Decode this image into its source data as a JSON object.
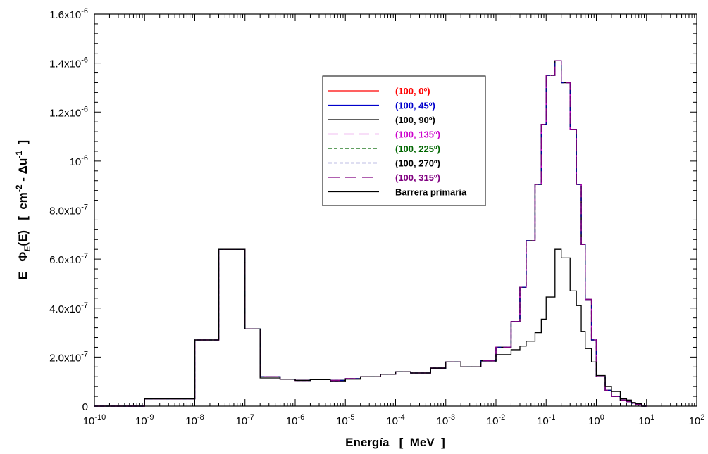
{
  "chart_data": {
    "type": "line",
    "xlabel": "Energía   [  MeV  ]",
    "ylabel": "E   Φ(E)   [  cm⁻² - Δu⁻¹  ]",
    "x_scale": "log",
    "xlim": [
      1e-10,
      100
    ],
    "ylim": [
      0,
      1.6e-06
    ],
    "x_tick_labels": [
      {
        "base": "10",
        "exp": "-10"
      },
      {
        "base": "10",
        "exp": "-9"
      },
      {
        "base": "10",
        "exp": "-8"
      },
      {
        "base": "10",
        "exp": "-7"
      },
      {
        "base": "10",
        "exp": "-6"
      },
      {
        "base": "10",
        "exp": "-5"
      },
      {
        "base": "10",
        "exp": "-4"
      },
      {
        "base": "10",
        "exp": "-3"
      },
      {
        "base": "10",
        "exp": "-2"
      },
      {
        "base": "10",
        "exp": "-1"
      },
      {
        "base": "10",
        "exp": "0"
      },
      {
        "base": "10",
        "exp": "1"
      },
      {
        "base": "10",
        "exp": "2"
      }
    ],
    "y_tick_labels": [
      {
        "value": 0,
        "base": "0",
        "exp": ""
      },
      {
        "value": 2e-07,
        "base": "2.0x10",
        "exp": "-7"
      },
      {
        "value": 4e-07,
        "base": "4.0x10",
        "exp": "-7"
      },
      {
        "value": 6e-07,
        "base": "6.0x10",
        "exp": "-7"
      },
      {
        "value": 8e-07,
        "base": "8.0x10",
        "exp": "-7"
      },
      {
        "value": 1e-06,
        "base": "10",
        "exp": "-6"
      },
      {
        "value": 1.2e-06,
        "base": "1.2x10",
        "exp": "-6"
      },
      {
        "value": 1.4e-06,
        "base": "1.4x10",
        "exp": "-6"
      },
      {
        "value": 1.6e-06,
        "base": "1.6x10",
        "exp": "-6"
      }
    ],
    "bin_edges": [
      1e-10,
      1e-09,
      1e-08,
      3e-08,
      1e-07,
      2e-07,
      5e-07,
      1e-06,
      2e-06,
      5e-06,
      1e-05,
      2e-05,
      5e-05,
      0.0001,
      0.0002,
      0.0005,
      0.001,
      0.002,
      0.005,
      0.01,
      0.02,
      0.03,
      0.04,
      0.06,
      0.08,
      0.1,
      0.15,
      0.2,
      0.3,
      0.4,
      0.5,
      0.6,
      0.8,
      1.0,
      1.5,
      2.0,
      3.0,
      4.0,
      5.0,
      6.0,
      8.0,
      10.0
    ],
    "series": [
      {
        "name": "(100, 0º)",
        "color": "#ff0000",
        "dash": "",
        "values": [
          0,
          3e-08,
          2.7e-07,
          6.4e-07,
          3.15e-07,
          1.2e-07,
          1.1e-07,
          1.05e-07,
          1.08e-07,
          1.05e-07,
          1.12e-07,
          1.2e-07,
          1.3e-07,
          1.4e-07,
          1.35e-07,
          1.55e-07,
          1.8e-07,
          1.6e-07,
          1.85e-07,
          2.4e-07,
          3.45e-07,
          4.85e-07,
          6.75e-07,
          9.05e-07,
          1.15e-06,
          1.35e-06,
          1.41e-06,
          1.32e-06,
          1.13e-06,
          9.05e-07,
          6.6e-07,
          4.35e-07,
          2.7e-07,
          1.2e-07,
          6.5e-08,
          4e-08,
          2.5e-08,
          1.8e-08,
          1.2e-08,
          8e-09,
          0
        ]
      },
      {
        "name": "(100, 45º)",
        "color": "#0000cc",
        "dash": "",
        "values": [
          0,
          3e-08,
          2.7e-07,
          6.4e-07,
          3.15e-07,
          1.2e-07,
          1.1e-07,
          1.05e-07,
          1.08e-07,
          1.05e-07,
          1.12e-07,
          1.2e-07,
          1.3e-07,
          1.4e-07,
          1.35e-07,
          1.55e-07,
          1.8e-07,
          1.6e-07,
          1.85e-07,
          2.4e-07,
          3.45e-07,
          4.85e-07,
          6.75e-07,
          9.05e-07,
          1.15e-06,
          1.35e-06,
          1.41e-06,
          1.32e-06,
          1.13e-06,
          9.05e-07,
          6.6e-07,
          4.35e-07,
          2.7e-07,
          1.2e-07,
          6.5e-08,
          4e-08,
          2.5e-08,
          1.8e-08,
          1.2e-08,
          8e-09,
          0
        ]
      },
      {
        "name": "(100, 90º)",
        "color": "#000000",
        "dash": "",
        "values": [
          0,
          3e-08,
          2.7e-07,
          6.4e-07,
          3.15e-07,
          1.2e-07,
          1.1e-07,
          1.05e-07,
          1.08e-07,
          1.05e-07,
          1.12e-07,
          1.2e-07,
          1.3e-07,
          1.4e-07,
          1.35e-07,
          1.55e-07,
          1.8e-07,
          1.6e-07,
          1.85e-07,
          2.4e-07,
          3.45e-07,
          4.85e-07,
          6.75e-07,
          9.05e-07,
          1.15e-06,
          1.35e-06,
          1.41e-06,
          1.32e-06,
          1.13e-06,
          9.05e-07,
          6.6e-07,
          4.35e-07,
          2.7e-07,
          1.2e-07,
          6.5e-08,
          4e-08,
          2.5e-08,
          1.8e-08,
          1.2e-08,
          8e-09,
          0
        ]
      },
      {
        "name": "(100, 135º)",
        "color": "#cc00cc",
        "dash": "14,8",
        "values": [
          0,
          3e-08,
          2.7e-07,
          6.4e-07,
          3.15e-07,
          1.2e-07,
          1.1e-07,
          1.05e-07,
          1.08e-07,
          1.05e-07,
          1.12e-07,
          1.2e-07,
          1.3e-07,
          1.4e-07,
          1.35e-07,
          1.55e-07,
          1.8e-07,
          1.6e-07,
          1.85e-07,
          2.4e-07,
          3.45e-07,
          4.85e-07,
          6.75e-07,
          9.05e-07,
          1.15e-06,
          1.35e-06,
          1.41e-06,
          1.32e-06,
          1.13e-06,
          9.05e-07,
          6.6e-07,
          4.35e-07,
          2.7e-07,
          1.2e-07,
          6.5e-08,
          4e-08,
          2.5e-08,
          1.8e-08,
          1.2e-08,
          8e-09,
          0
        ]
      },
      {
        "name": "(100, 225º)",
        "color": "#006600",
        "dash": "5,3",
        "values": [
          0,
          3e-08,
          2.7e-07,
          6.4e-07,
          3.15e-07,
          1.2e-07,
          1.1e-07,
          1.05e-07,
          1.08e-07,
          1.05e-07,
          1.12e-07,
          1.2e-07,
          1.3e-07,
          1.4e-07,
          1.35e-07,
          1.55e-07,
          1.8e-07,
          1.6e-07,
          1.85e-07,
          2.4e-07,
          3.45e-07,
          4.85e-07,
          6.75e-07,
          9.05e-07,
          1.15e-06,
          1.35e-06,
          1.41e-06,
          1.32e-06,
          1.13e-06,
          9.05e-07,
          6.6e-07,
          4.35e-07,
          2.7e-07,
          1.2e-07,
          6.5e-08,
          4e-08,
          2.5e-08,
          1.8e-08,
          1.2e-08,
          8e-09,
          0
        ]
      },
      {
        "name": "(100, 270º)",
        "color": "#000099",
        "dash": "5,3",
        "values": [
          0,
          3e-08,
          2.7e-07,
          6.4e-07,
          3.15e-07,
          1.2e-07,
          1.1e-07,
          1.05e-07,
          1.08e-07,
          1.05e-07,
          1.12e-07,
          1.2e-07,
          1.3e-07,
          1.4e-07,
          1.35e-07,
          1.55e-07,
          1.8e-07,
          1.6e-07,
          1.85e-07,
          2.4e-07,
          3.45e-07,
          4.85e-07,
          6.75e-07,
          9.05e-07,
          1.15e-06,
          1.35e-06,
          1.41e-06,
          1.32e-06,
          1.13e-06,
          9.05e-07,
          6.6e-07,
          4.35e-07,
          2.7e-07,
          1.2e-07,
          6.5e-08,
          4e-08,
          2.5e-08,
          1.8e-08,
          1.2e-08,
          8e-09,
          0
        ]
      },
      {
        "name": "(100, 315º)",
        "color": "#800080",
        "dash": "16,8",
        "values": [
          0,
          3e-08,
          2.7e-07,
          6.4e-07,
          3.15e-07,
          1.2e-07,
          1.1e-07,
          1.05e-07,
          1.08e-07,
          1.05e-07,
          1.12e-07,
          1.2e-07,
          1.3e-07,
          1.4e-07,
          1.35e-07,
          1.55e-07,
          1.8e-07,
          1.6e-07,
          1.85e-07,
          2.4e-07,
          3.45e-07,
          4.85e-07,
          6.75e-07,
          9.05e-07,
          1.15e-06,
          1.35e-06,
          1.41e-06,
          1.32e-06,
          1.13e-06,
          9.05e-07,
          6.6e-07,
          4.35e-07,
          2.7e-07,
          1.2e-07,
          6.5e-08,
          4e-08,
          2.5e-08,
          1.8e-08,
          1.2e-08,
          8e-09,
          0
        ]
      },
      {
        "name": "Barrera primaria",
        "color": "#000000",
        "dash": "",
        "values": [
          0,
          3e-08,
          2.7e-07,
          6.4e-07,
          3.15e-07,
          1.15e-07,
          1.1e-07,
          1.05e-07,
          1.08e-07,
          1e-07,
          1.1e-07,
          1.2e-07,
          1.3e-07,
          1.4e-07,
          1.35e-07,
          1.55e-07,
          1.8e-07,
          1.6e-07,
          1.8e-07,
          2.1e-07,
          2.3e-07,
          2.45e-07,
          2.65e-07,
          3e-07,
          3.55e-07,
          4.45e-07,
          6.4e-07,
          6.05e-07,
          4.7e-07,
          4.1e-07,
          3.05e-07,
          2.35e-07,
          1.8e-07,
          1.25e-07,
          8e-08,
          6e-08,
          3e-08,
          2.5e-08,
          1.5e-08,
          1e-08,
          0
        ]
      }
    ]
  }
}
